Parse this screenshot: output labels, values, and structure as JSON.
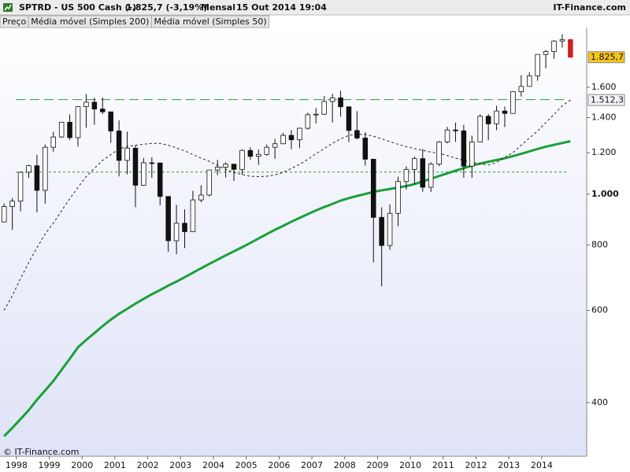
{
  "chart_data": {
    "type": "candlestick",
    "title": "SPTRD - US 500 Cash (-)",
    "quote": "1.825,7 (-3,19%)",
    "period": "Mensal",
    "timestamp": "15 Out 2014 19:04",
    "brand": "IT-Finance.com",
    "copyright": "© IT-Finance.com",
    "log_scale": true,
    "xlim": [
      1997.5,
      2015.37
    ],
    "xticks": [
      1998,
      1999,
      2000,
      2001,
      2002,
      2003,
      2004,
      2005,
      2006,
      2007,
      2008,
      2009,
      2010,
      2011,
      2012,
      2013,
      2014
    ],
    "ylim": [
      316,
      2080
    ],
    "yticks": [
      {
        "value": 1600,
        "label": "1.600"
      },
      {
        "value": 1400,
        "label": "1.400"
      },
      {
        "value": 1200,
        "label": "1.200"
      },
      {
        "value": 1000,
        "label": "1.000"
      },
      800,
      600,
      400
    ],
    "hlines": [
      {
        "value": 1515,
        "color": "#2a9a3a",
        "dash": "long"
      },
      {
        "value": 1102,
        "color": "#2a9a3a",
        "dash": "short"
      }
    ],
    "x": [
      1997.625,
      1997.875,
      1998.125,
      1998.375,
      1998.625,
      1998.875,
      1999.125,
      1999.375,
      1999.625,
      1999.875,
      2000.125,
      2000.375,
      2000.625,
      2000.875,
      2001.125,
      2001.375,
      2001.625,
      2001.875,
      2002.125,
      2002.375,
      2002.625,
      2002.875,
      2003.125,
      2003.375,
      2003.625,
      2003.875,
      2004.125,
      2004.375,
      2004.625,
      2004.875,
      2005.125,
      2005.375,
      2005.625,
      2005.875,
      2006.125,
      2006.375,
      2006.625,
      2006.875,
      2007.125,
      2007.375,
      2007.625,
      2007.875,
      2008.125,
      2008.375,
      2008.625,
      2008.875,
      2009.125,
      2009.375,
      2009.625,
      2009.875,
      2010.125,
      2010.375,
      2010.625,
      2010.875,
      2011.125,
      2011.375,
      2011.625,
      2011.875,
      2012.125,
      2012.375,
      2012.625,
      2012.875,
      2013.125,
      2013.375,
      2013.625,
      2013.875,
      2014.125,
      2014.375,
      2014.625,
      2014.875
    ],
    "series": [
      {
        "name": "Preço",
        "up_color": "#ffffff",
        "down_color": "#111111",
        "last_color": "#d02020",
        "last_label": "1.825,7",
        "label_color": "#f5c518",
        "open": [
          885,
          947,
          970,
          1101,
          1133,
          1017,
          1229,
          1286,
          1372,
          1282,
          1469,
          1498,
          1454,
          1436,
          1320,
          1160,
          1224,
          1040,
          1148,
          1147,
          990,
          815,
          880,
          848,
          975,
          996,
          1112,
          1126,
          1141,
          1115,
          1212,
          1181,
          1191,
          1229,
          1248,
          1295,
          1270,
          1336,
          1418,
          1421,
          1503,
          1527,
          1468,
          1323,
          1280,
          1166,
          903,
          798,
          919,
          1057,
          1115,
          1169,
          1031,
          1141,
          1258,
          1326,
          1321,
          1131,
          1258,
          1408,
          1362,
          1441,
          1426,
          1569,
          1606,
          1682,
          1848,
          1872,
          1960,
          1972
        ],
        "high": [
          960,
          983,
          1105,
          1138,
          1190,
          1244,
          1316,
          1372,
          1420,
          1473,
          1553,
          1527,
          1530,
          1436,
          1383,
          1316,
          1239,
          1173,
          1176,
          1147,
          990,
          954,
          935,
          1015,
          1040,
          1112,
          1163,
          1150,
          1140,
          1217,
          1229,
          1217,
          1245,
          1275,
          1310,
          1326,
          1340,
          1431,
          1461,
          1540,
          1555,
          1576,
          1471,
          1440,
          1313,
          1167,
          944,
          956,
          1080,
          1130,
          1180,
          1220,
          1150,
          1263,
          1344,
          1370,
          1356,
          1293,
          1420,
          1422,
          1475,
          1470,
          1570,
          1687,
          1710,
          1849,
          1884,
          1968,
          2019,
          1978
        ],
        "low": [
          885,
          855,
          927,
          1074,
          923,
          959,
          1205,
          1281,
          1268,
          1233,
          1339,
          1356,
          1422,
          1254,
          1081,
          1091,
          944,
          1038,
          1074,
          952,
          776,
          768,
          789,
          847,
          965,
          990,
          1087,
          1076,
          1060,
          1090,
          1163,
          1137,
          1183,
          1168,
          1245,
          1219,
          1224,
          1328,
          1364,
          1416,
          1370,
          1406,
          1257,
          1272,
          1133,
          741,
          667,
          783,
          869,
          1020,
          1045,
          1011,
          1010,
          1131,
          1250,
          1258,
          1075,
          1074,
          1258,
          1267,
          1325,
          1343,
          1426,
          1536,
          1604,
          1646,
          1738,
          1814,
          1905,
          1820
        ],
        "close": [
          947,
          970,
          1101,
          1133,
          1017,
          1229,
          1286,
          1372,
          1282,
          1469,
          1498,
          1454,
          1436,
          1320,
          1160,
          1224,
          1040,
          1148,
          1147,
          990,
          815,
          880,
          848,
          975,
          996,
          1112,
          1126,
          1141,
          1115,
          1212,
          1181,
          1191,
          1229,
          1248,
          1295,
          1270,
          1336,
          1418,
          1421,
          1503,
          1527,
          1468,
          1323,
          1280,
          1166,
          903,
          798,
          919,
          1057,
          1115,
          1169,
          1031,
          1141,
          1258,
          1326,
          1321,
          1131,
          1258,
          1408,
          1362,
          1441,
          1426,
          1569,
          1606,
          1682,
          1848,
          1872,
          1960,
          1972,
          1825.7
        ]
      },
      {
        "name": "Média móvel (Simples 200)",
        "color": "#19a038",
        "width": 3,
        "values": [
          345,
          358,
          372,
          387,
          405,
          422,
          440,
          462,
          485,
          510,
          527,
          543,
          560,
          576,
          591,
          604,
          618,
          631,
          644,
          656,
          669,
          681,
          694,
          708,
          722,
          736,
          750,
          764,
          778,
          792,
          807,
          823,
          839,
          855,
          870,
          886,
          901,
          916,
          931,
          945,
          958,
          972,
          983,
          992,
          1001,
          1010,
          1017,
          1023,
          1030,
          1036,
          1045,
          1058,
          1070,
          1083,
          1096,
          1109,
          1121,
          1134,
          1144,
          1153,
          1162,
          1171,
          1182,
          1194,
          1207,
          1220,
          1232,
          1242,
          1252,
          1262
        ]
      },
      {
        "name": "Média móvel (Simples 50)",
        "color": "#222222",
        "width": 1,
        "dashed": true,
        "last_label": "1.512,3",
        "label_color": "#f4f4f8",
        "values": [
          600,
          640,
          690,
          740,
          790,
          840,
          880,
          930,
          980,
          1030,
          1080,
          1120,
          1160,
          1190,
          1220,
          1232,
          1240,
          1246,
          1250,
          1250,
          1240,
          1225,
          1210,
          1190,
          1172,
          1155,
          1135,
          1115,
          1100,
          1090,
          1082,
          1080,
          1082,
          1088,
          1100,
          1120,
          1140,
          1165,
          1195,
          1222,
          1250,
          1275,
          1295,
          1300,
          1300,
          1290,
          1275,
          1260,
          1245,
          1232,
          1222,
          1212,
          1203,
          1197,
          1185,
          1172,
          1160,
          1150,
          1142,
          1137,
          1150,
          1175,
          1200,
          1240,
          1280,
          1320,
          1370,
          1420,
          1475,
          1512.3
        ]
      }
    ]
  }
}
